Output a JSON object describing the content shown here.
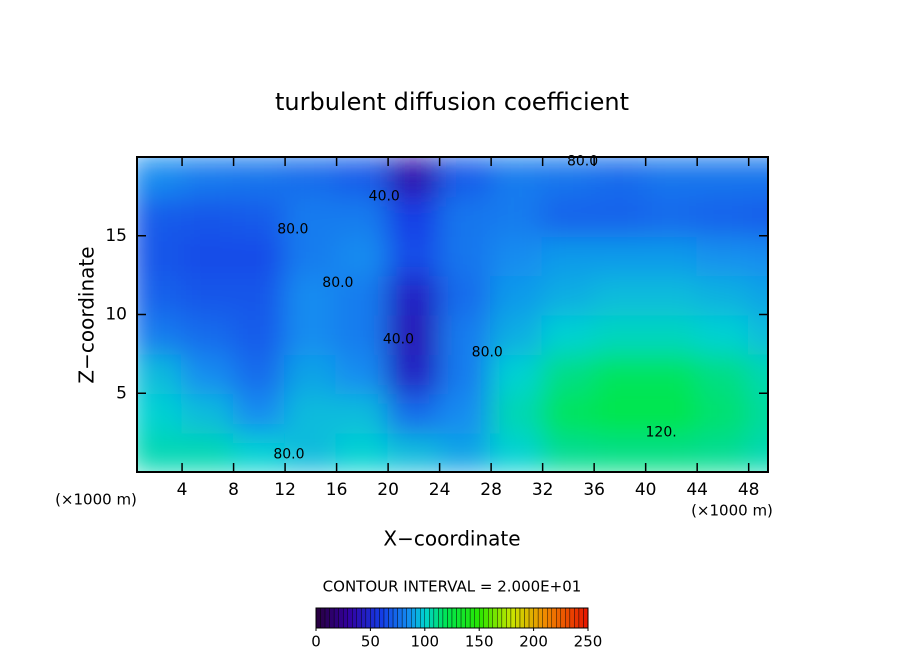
{
  "chart_data": {
    "type": "contour",
    "title": "turbulent diffusion coefficient",
    "x_label": "X−coordinate",
    "y_label": "Z−coordinate",
    "x_unit": "(×1000 m)",
    "x_unit_right": "(×1000 m)",
    "contour_interval": "CONTOUR INTERVAL = 2.000E+01",
    "x": [
      2,
      6,
      10,
      14,
      18,
      22,
      26,
      30,
      34,
      38,
      42,
      46,
      50
    ],
    "y": [
      1.25,
      3.75,
      6.25,
      8.75,
      11.25,
      13.75,
      16.25,
      18.75
    ],
    "z": [
      [
        105,
        105,
        100,
        95,
        100,
        95,
        90,
        100,
        110,
        112,
        112,
        110,
        105
      ],
      [
        100,
        95,
        85,
        95,
        95,
        75,
        85,
        105,
        118,
        122,
        122,
        115,
        108
      ],
      [
        95,
        85,
        75,
        90,
        85,
        45,
        80,
        100,
        112,
        118,
        118,
        112,
        105
      ],
      [
        80,
        75,
        70,
        85,
        80,
        40,
        80,
        92,
        100,
        103,
        103,
        100,
        95
      ],
      [
        72,
        68,
        68,
        85,
        80,
        45,
        75,
        88,
        92,
        95,
        95,
        93,
        90
      ],
      [
        68,
        65,
        65,
        80,
        85,
        65,
        78,
        85,
        88,
        88,
        88,
        86,
        85
      ],
      [
        70,
        68,
        70,
        80,
        80,
        60,
        78,
        80,
        72,
        72,
        74,
        72,
        70
      ],
      [
        85,
        80,
        78,
        75,
        70,
        35,
        70,
        80,
        78,
        75,
        78,
        78,
        78
      ]
    ],
    "xlim": [
      0.5,
      49.5
    ],
    "ylim": [
      0,
      20
    ],
    "xticks": [
      4,
      8,
      12,
      16,
      20,
      24,
      28,
      32,
      36,
      40,
      44,
      48
    ],
    "yticks": [
      5,
      10,
      15
    ],
    "clim": [
      0,
      250
    ],
    "colorbar_ticks": [
      0,
      50,
      100,
      150,
      200,
      250
    ],
    "contour_labels": [
      {
        "label": "80.0",
        "x": 35.1,
        "y": 19.7
      },
      {
        "label": "40.0",
        "x": 19.7,
        "y": 17.5
      },
      {
        "label": "80.0",
        "x": 12.6,
        "y": 15.4
      },
      {
        "label": "80.0",
        "x": 16.1,
        "y": 12
      },
      {
        "label": "40.0",
        "x": 20.8,
        "y": 8.4
      },
      {
        "label": "80.0",
        "x": 27.7,
        "y": 7.6
      },
      {
        "label": "120.",
        "x": 41.2,
        "y": 2.5
      },
      {
        "label": "80.0",
        "x": 12.3,
        "y": 1.1
      }
    ]
  }
}
